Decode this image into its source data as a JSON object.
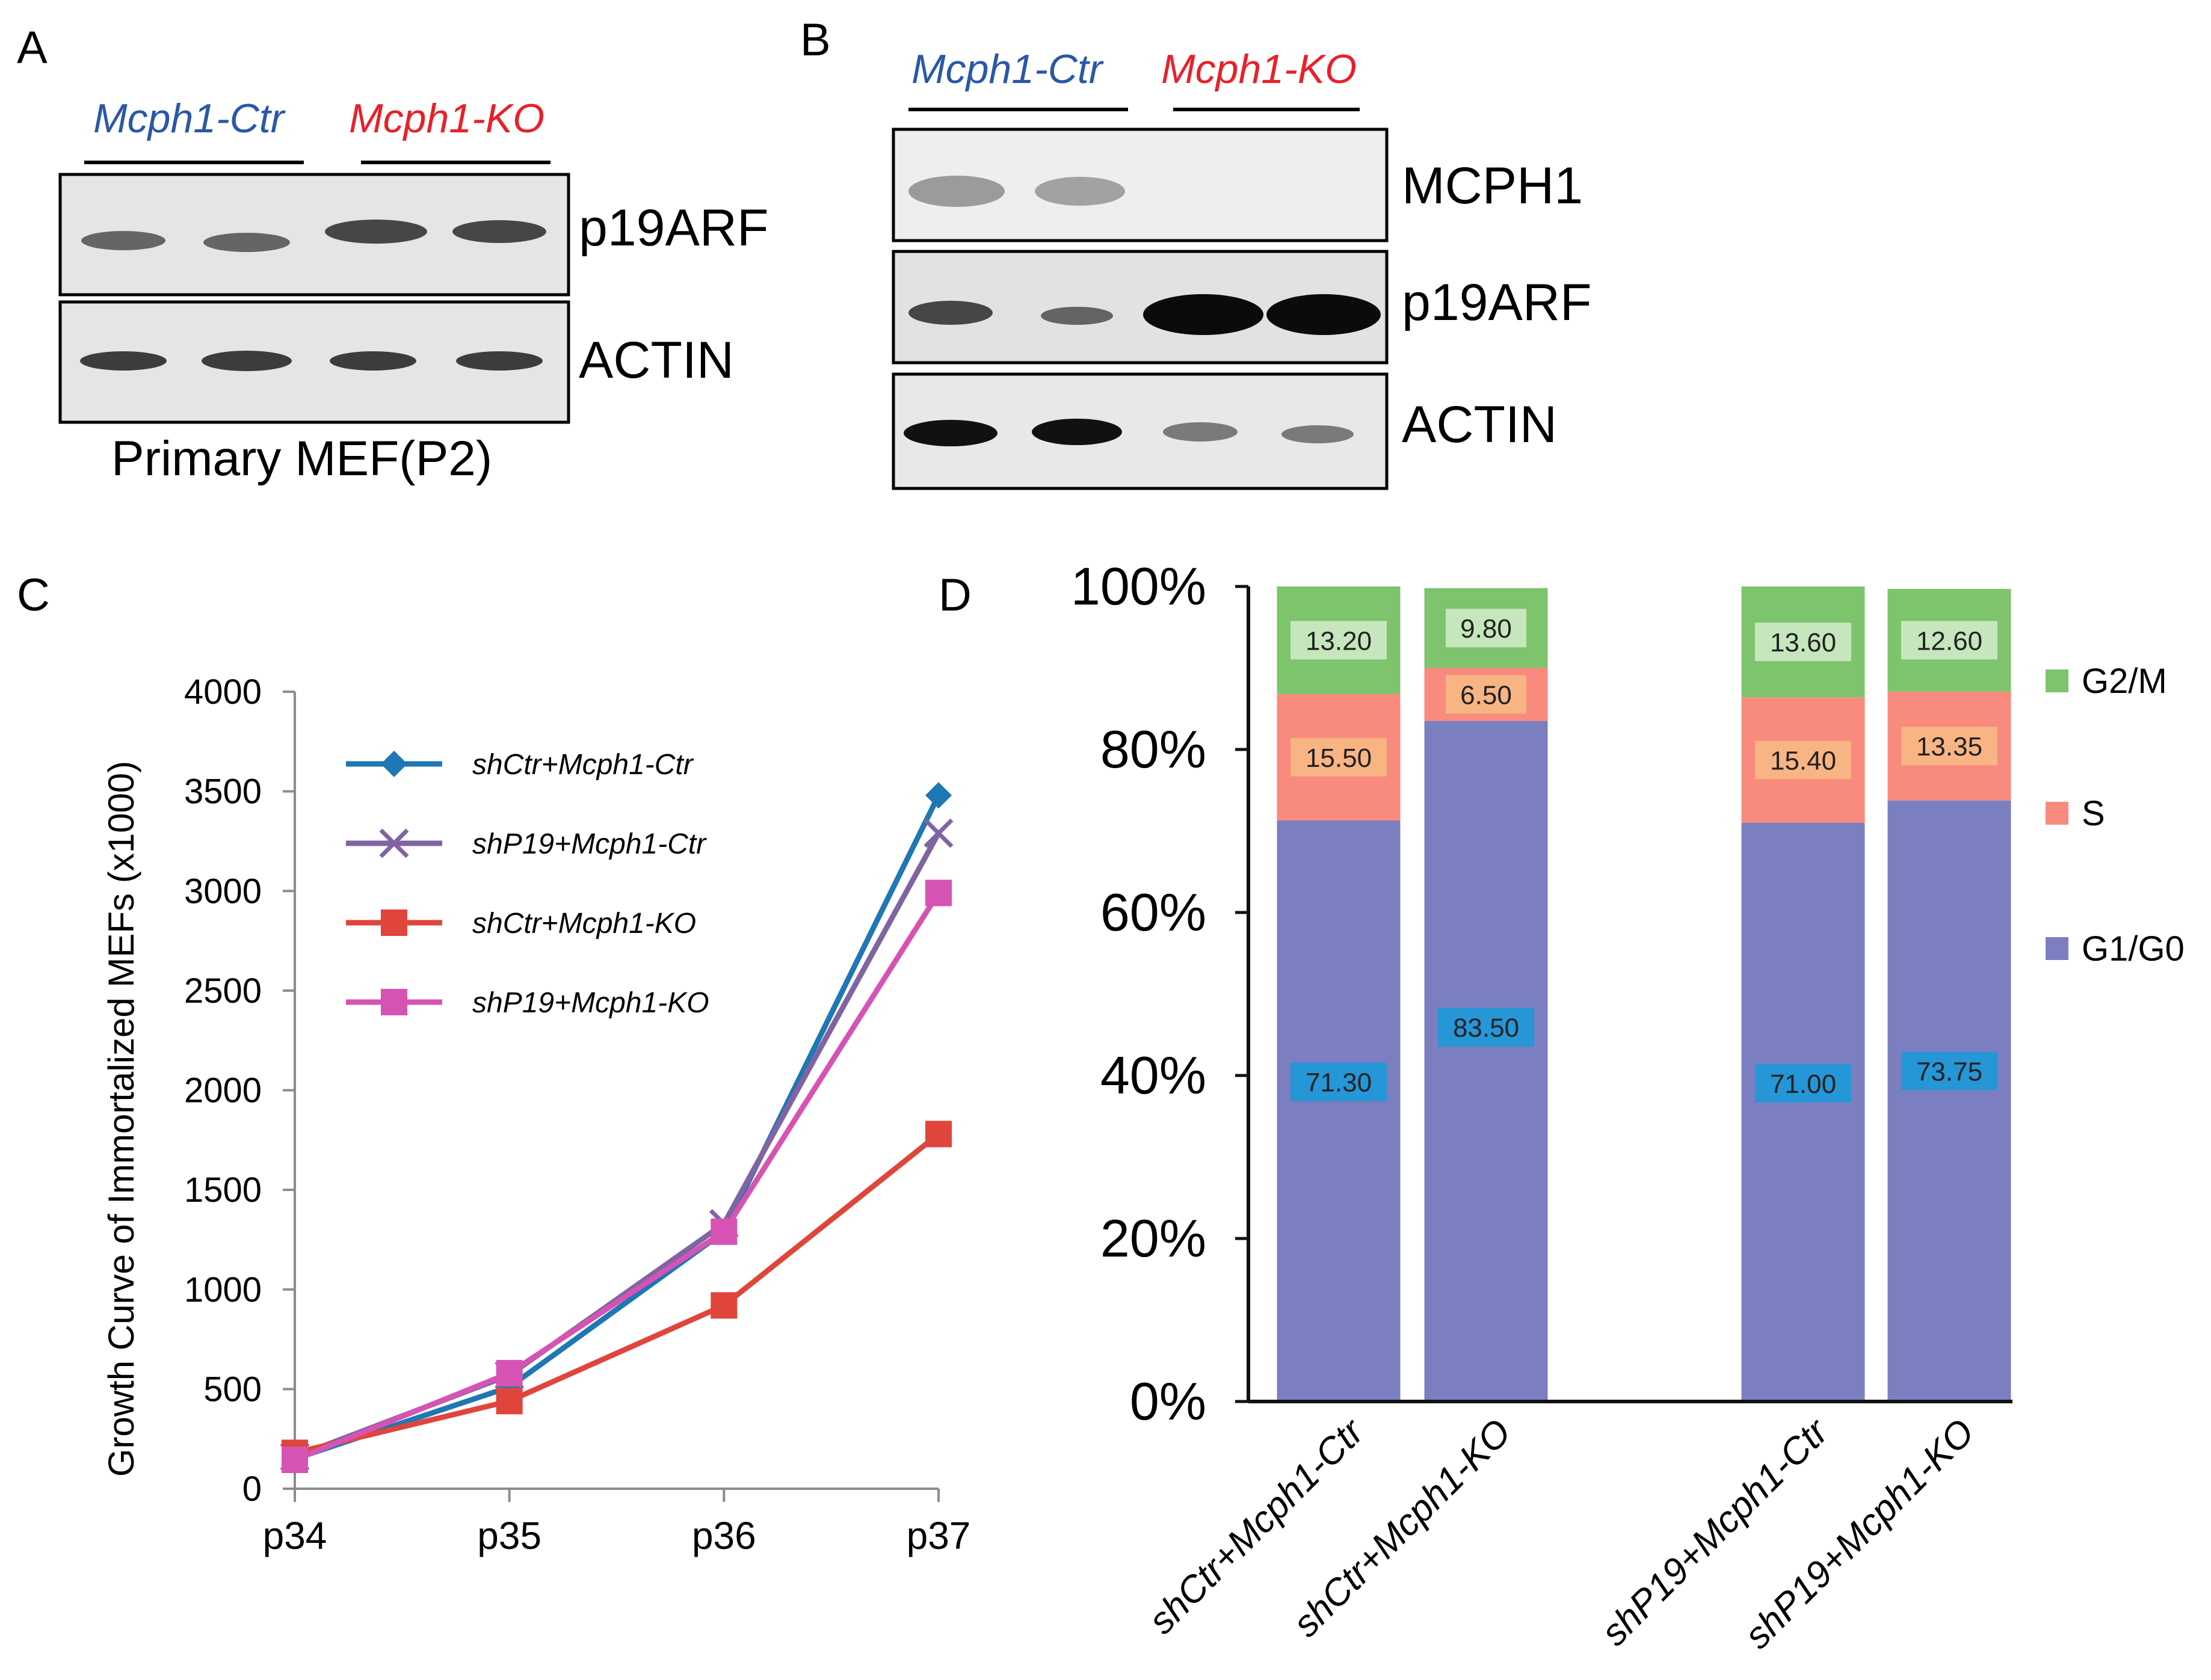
{
  "panels": {
    "A": {
      "label": "A",
      "groups": [
        "Mcph1-Ctr",
        "Mcph1-KO"
      ],
      "blots": [
        "p19ARF",
        "ACTIN"
      ],
      "caption": "Primary MEF(P2)"
    },
    "B": {
      "label": "B",
      "groups": [
        "Mcph1-Ctr",
        "Mcph1-KO"
      ],
      "blots": [
        "MCPH1",
        "p19ARF",
        "ACTIN"
      ]
    },
    "C": {
      "label": "C"
    },
    "D": {
      "label": "D"
    }
  },
  "colors": {
    "ctr_label": "#2a57a8",
    "ko_label": "#e8202a",
    "series_shctr_ctr": "#1f77b4",
    "series_shp19_ctr": "#8064a2",
    "series_shctr_ko": "#e0453c",
    "series_shp19_ko": "#d653b4",
    "g1g0": "#7b7fc0",
    "s": "#f98a7e",
    "g2m": "#7dc46c",
    "g1_label_box": "#2596d6",
    "s_label_box": "#f8b483",
    "g2m_label_box": "#c6e6bd"
  },
  "chart_data": [
    {
      "type": "line",
      "title": "",
      "xlabel": "",
      "ylabel": "Growth Curve of Immortalized  MEFs (x1000)",
      "x": [
        "p34",
        "p35",
        "p36",
        "p37"
      ],
      "ylim": [
        0,
        4000
      ],
      "yticks": [
        "0",
        "500",
        "1000",
        "1500",
        "2000",
        "2500",
        "3000",
        "3500",
        "4000"
      ],
      "legend_position": "top-left",
      "series": [
        {
          "name": "shCtr+Mcph1-Ctr",
          "values": [
            150,
            510,
            1290,
            3480
          ],
          "marker": "diamond",
          "colorKey": "series_shctr_ctr"
        },
        {
          "name": "shP19+Mcph1-Ctr",
          "values": [
            160,
            570,
            1330,
            3290
          ],
          "marker": "x",
          "colorKey": "series_shp19_ctr"
        },
        {
          "name": "shCtr+Mcph1-KO",
          "values": [
            180,
            440,
            920,
            1780
          ],
          "marker": "square",
          "colorKey": "series_shctr_ko"
        },
        {
          "name": "shP19+Mcph1-KO",
          "values": [
            145,
            580,
            1290,
            2990
          ],
          "marker": "square",
          "colorKey": "series_shp19_ko"
        }
      ]
    },
    {
      "type": "bar",
      "stacked": true,
      "title": "",
      "xlabel": "",
      "ylabel": "",
      "categories": [
        "shCtr+Mcph1-Ctr",
        "shCtr+Mcph1-KO",
        "shP19+Mcph1-Ctr",
        "shP19+Mcph1-KO"
      ],
      "ylim": [
        0,
        100
      ],
      "yticks": [
        "0%",
        "20%",
        "40%",
        "60%",
        "80%",
        "100%"
      ],
      "legend_position": "right",
      "series": [
        {
          "name": "G1/G0",
          "values": [
            71.3,
            83.5,
            71.0,
            73.75
          ],
          "labels": [
            "71.30",
            "83.50",
            "71.00",
            "73.75"
          ],
          "colorKey": "g1g0",
          "boxKey": "g1_label_box"
        },
        {
          "name": "S",
          "values": [
            15.5,
            6.5,
            15.4,
            13.35
          ],
          "labels": [
            "15.50",
            "6.50",
            "15.40",
            "13.35"
          ],
          "colorKey": "s",
          "boxKey": "s_label_box"
        },
        {
          "name": "G2/M",
          "values": [
            13.2,
            9.8,
            13.6,
            12.6
          ],
          "labels": [
            "13.20",
            "9.80",
            "13.60",
            "12.60"
          ],
          "colorKey": "g2m",
          "boxKey": "g2m_label_box"
        }
      ]
    }
  ]
}
